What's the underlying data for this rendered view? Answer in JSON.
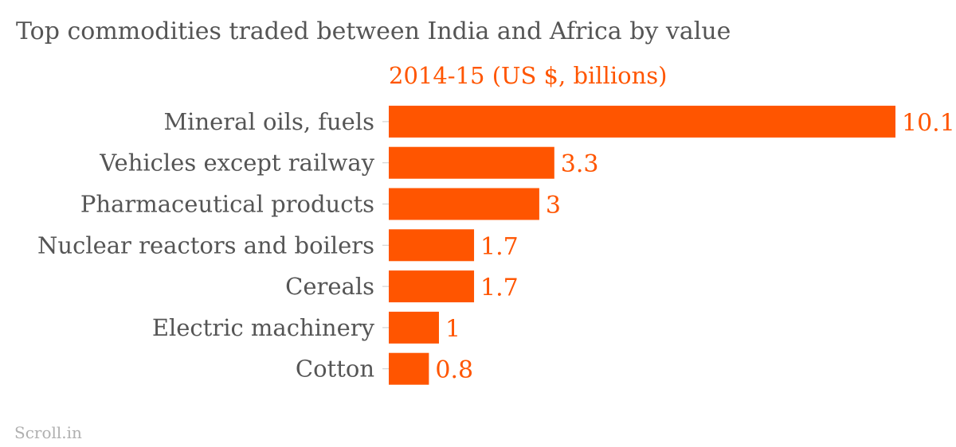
{
  "colors": {
    "bar": "#ff5500",
    "value_label": "#ff5500",
    "text": "#555555",
    "credit": "#b0b0b0"
  },
  "credit": "Scroll.in",
  "chart_data": {
    "type": "bar",
    "orientation": "horizontal",
    "title": "Top commodities traded between India and Africa by value",
    "subtitle": "2014-15 (US $, billions)",
    "categories": [
      "Mineral oils, fuels",
      "Vehicles except railway",
      "Pharmaceutical products",
      "Nuclear reactors and boilers",
      "Cereals",
      "Electric machinery",
      "Cotton"
    ],
    "values": [
      10.1,
      3.3,
      3,
      1.7,
      1.7,
      1,
      0.8
    ],
    "value_labels": [
      "10.1",
      "3.3",
      "3",
      "1.7",
      "1.7",
      "1",
      "0.8"
    ],
    "xlim": [
      0,
      10.1
    ],
    "grid": false,
    "legend": "none"
  }
}
